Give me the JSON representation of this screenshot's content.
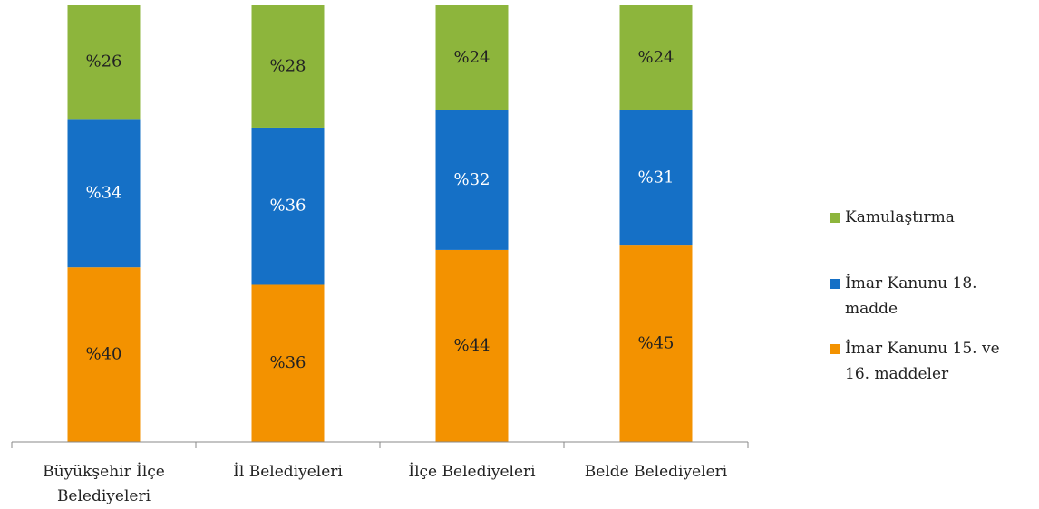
{
  "chart_data": {
    "type": "stacked_bar",
    "categories": [
      "Büyükşehir İlçe Belediyeleri",
      "İl Belediyeleri",
      "İlçe Belediyeleri",
      "Belde Belediyeleri"
    ],
    "ylim": [
      0,
      100
    ],
    "series": [
      {
        "name": "İmar Kanunu 15. ve 16. maddeler",
        "color": "#f39200",
        "values": [
          40,
          36,
          44,
          45
        ],
        "value_labels": [
          "%40",
          "%36",
          "%44",
          "%45"
        ]
      },
      {
        "name": "İmar Kanunu 18. madde",
        "color": "#1570c6",
        "values": [
          34,
          36,
          32,
          31
        ],
        "value_labels": [
          "%34",
          "%36",
          "%32",
          "%31"
        ]
      },
      {
        "name": "Kamulaştırma",
        "color": "#8db53c",
        "values": [
          26,
          28,
          24,
          24
        ],
        "value_labels": [
          "%26",
          "%28",
          "%24",
          "%24"
        ]
      }
    ]
  }
}
